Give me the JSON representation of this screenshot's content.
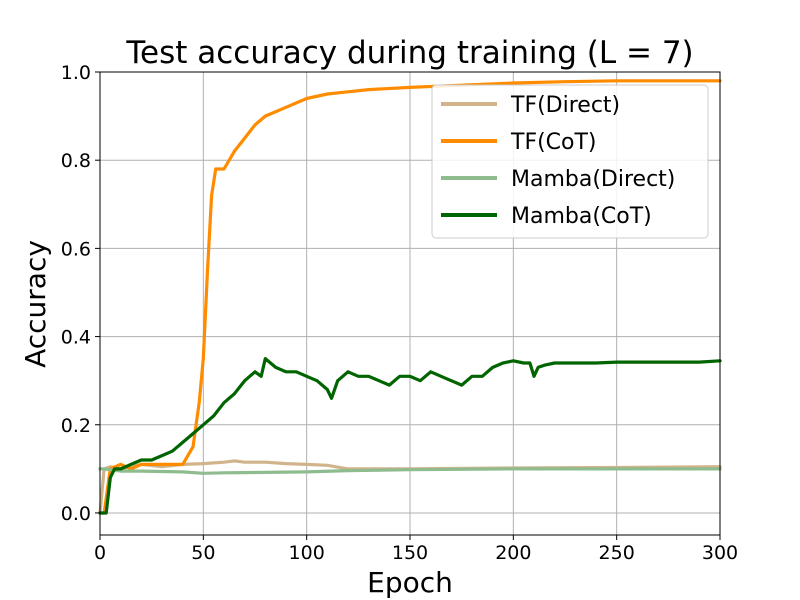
{
  "chart_data": {
    "type": "line",
    "title": "Test accuracy during training (L = 7)",
    "xlabel": "Epoch",
    "ylabel": "Accuracy",
    "xlim": [
      0,
      300
    ],
    "ylim": [
      -0.05,
      1.0
    ],
    "xticks": [
      0,
      50,
      100,
      150,
      200,
      250,
      300
    ],
    "yticks": [
      0.0,
      0.2,
      0.4,
      0.6,
      0.8,
      1.0
    ],
    "grid": true,
    "legend_position": "top-right",
    "series": [
      {
        "name": "TF(Direct)",
        "color": "#d2b48c",
        "x": [
          0,
          2,
          5,
          10,
          15,
          20,
          30,
          40,
          50,
          60,
          65,
          70,
          80,
          90,
          100,
          110,
          120,
          150,
          200,
          250,
          300
        ],
        "y": [
          0.0,
          0.1,
          0.105,
          0.1,
          0.105,
          0.11,
          0.105,
          0.11,
          0.112,
          0.115,
          0.118,
          0.115,
          0.115,
          0.112,
          0.11,
          0.108,
          0.1,
          0.1,
          0.102,
          0.103,
          0.105
        ]
      },
      {
        "name": "TF(CoT)",
        "color": "#ff8c00",
        "x": [
          0,
          2,
          5,
          10,
          15,
          20,
          30,
          40,
          45,
          48,
          50,
          52,
          54,
          56,
          58,
          60,
          65,
          70,
          75,
          80,
          90,
          100,
          110,
          120,
          130,
          150,
          175,
          200,
          225,
          250,
          275,
          300
        ],
        "y": [
          0.0,
          0.0,
          0.1,
          0.11,
          0.1,
          0.11,
          0.11,
          0.11,
          0.15,
          0.25,
          0.35,
          0.55,
          0.72,
          0.78,
          0.78,
          0.78,
          0.82,
          0.85,
          0.88,
          0.9,
          0.92,
          0.94,
          0.95,
          0.955,
          0.96,
          0.965,
          0.97,
          0.975,
          0.978,
          0.98,
          0.98,
          0.98
        ]
      },
      {
        "name": "Mamba(Direct)",
        "color": "#8fbc8f",
        "x": [
          0,
          2,
          5,
          10,
          20,
          30,
          40,
          50,
          60,
          80,
          100,
          120,
          150,
          200,
          250,
          300
        ],
        "y": [
          0.1,
          0.1,
          0.098,
          0.095,
          0.095,
          0.094,
          0.093,
          0.09,
          0.091,
          0.092,
          0.093,
          0.096,
          0.098,
          0.1,
          0.1,
          0.1
        ]
      },
      {
        "name": "Mamba(CoT)",
        "color": "#006400",
        "x": [
          0,
          2,
          3,
          5,
          7,
          10,
          15,
          20,
          25,
          30,
          35,
          40,
          45,
          50,
          55,
          60,
          65,
          70,
          75,
          78,
          80,
          85,
          90,
          95,
          100,
          105,
          110,
          112,
          115,
          120,
          125,
          130,
          135,
          140,
          145,
          150,
          155,
          160,
          165,
          170,
          175,
          180,
          185,
          190,
          195,
          200,
          205,
          208,
          210,
          212,
          215,
          220,
          230,
          240,
          250,
          260,
          270,
          280,
          290,
          300
        ],
        "y": [
          0.0,
          0.0,
          0.0,
          0.08,
          0.1,
          0.1,
          0.11,
          0.12,
          0.12,
          0.13,
          0.14,
          0.16,
          0.18,
          0.2,
          0.22,
          0.25,
          0.27,
          0.3,
          0.32,
          0.31,
          0.35,
          0.33,
          0.32,
          0.32,
          0.31,
          0.3,
          0.28,
          0.26,
          0.3,
          0.32,
          0.31,
          0.31,
          0.3,
          0.29,
          0.31,
          0.31,
          0.3,
          0.32,
          0.31,
          0.3,
          0.29,
          0.31,
          0.31,
          0.33,
          0.34,
          0.345,
          0.34,
          0.34,
          0.31,
          0.33,
          0.335,
          0.34,
          0.34,
          0.34,
          0.342,
          0.342,
          0.342,
          0.342,
          0.342,
          0.345
        ]
      }
    ]
  }
}
